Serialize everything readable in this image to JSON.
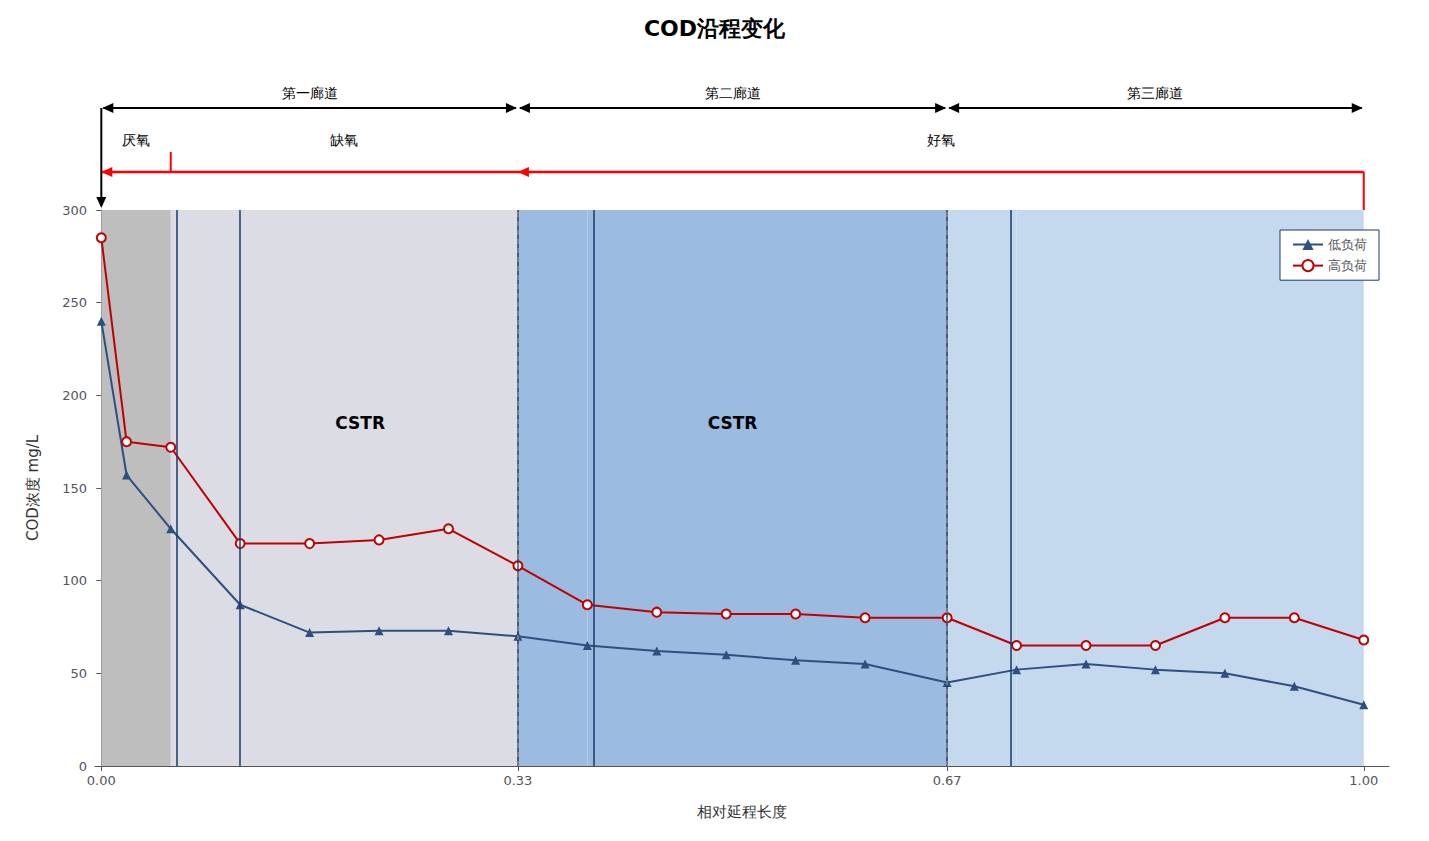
{
  "chart_data": {
    "type": "line",
    "title": "COD沿程变化",
    "xlabel": "相对延程长度",
    "ylabel": "COD浓度 mg/L",
    "xlim": [
      -0.005,
      1.02
    ],
    "xticks": [
      {
        "value": 0.0,
        "label": "0.00"
      },
      {
        "value": 0.33,
        "label": "0.33"
      },
      {
        "value": 0.67,
        "label": "0.67"
      },
      {
        "value": 1.0,
        "label": "1.00"
      }
    ],
    "ylim": [
      0,
      300
    ],
    "yticks": [
      0,
      50,
      100,
      150,
      200,
      250,
      300
    ],
    "grid": false,
    "legend": "upper right",
    "series": [
      {
        "name": "低负荷",
        "color": "#2F4F7F",
        "marker": "triangle",
        "x": [
          0.0,
          0.02,
          0.055,
          0.11,
          0.165,
          0.22,
          0.275,
          0.33,
          0.385,
          0.44,
          0.495,
          0.55,
          0.605,
          0.67,
          0.725,
          0.78,
          0.835,
          0.89,
          0.945,
          1.0
        ],
        "values": [
          240,
          157,
          128,
          87,
          72,
          73,
          73,
          70,
          65,
          62,
          60,
          57,
          55,
          45,
          52,
          55,
          52,
          50,
          43,
          33
        ]
      },
      {
        "name": "高负荷",
        "color": "#C00000",
        "marker": "open_circle",
        "x": [
          0.0,
          0.02,
          0.055,
          0.11,
          0.165,
          0.22,
          0.275,
          0.33,
          0.385,
          0.44,
          0.495,
          0.55,
          0.605,
          0.67,
          0.725,
          0.78,
          0.835,
          0.89,
          0.945,
          1.0
        ],
        "values": [
          285,
          175,
          172,
          120,
          120,
          122,
          128,
          108,
          87,
          83,
          82,
          82,
          80,
          80,
          65,
          65,
          65,
          80,
          80,
          68
        ]
      }
    ],
    "zones": [
      {
        "x0": 0.0,
        "x1": 0.055,
        "color": "#BEBEBE"
      },
      {
        "x0": 0.055,
        "x1": 0.11,
        "color": "#DCDCE4"
      },
      {
        "x0": 0.11,
        "x1": 0.33,
        "color": "#DCDCE4"
      },
      {
        "x0": 0.33,
        "x1": 0.385,
        "color": "#9BBCE0"
      },
      {
        "x0": 0.385,
        "x1": 0.67,
        "color": "#9BBCE0"
      },
      {
        "x0": 0.67,
        "x1": 0.725,
        "color": "#C4D8EE"
      },
      {
        "x0": 0.725,
        "x1": 1.0,
        "color": "#C4D8EE"
      }
    ],
    "solid_dividers": [
      0.055,
      0.11,
      0.385,
      0.725
    ],
    "dashed_dividers": [
      0.33,
      0.67
    ],
    "annotations": [
      {
        "text": "CSTR",
        "x": 0.205,
        "y": 185
      },
      {
        "text": "CSTR",
        "x": 0.5,
        "y": 185
      }
    ],
    "corridors": [
      {
        "text": "第一廊道",
        "x0": 0.0,
        "x1": 0.33
      },
      {
        "text": "第二廊道",
        "x0": 0.33,
        "x1": 0.67
      },
      {
        "text": "第三廊道",
        "x0": 0.67,
        "x1": 1.0
      }
    ],
    "zone_labels": [
      {
        "text": "厌氧",
        "x0": 0.0,
        "x1": 0.055
      },
      {
        "text": "缺氧",
        "x0": 0.055,
        "x1": 0.33
      },
      {
        "text": "好氧",
        "x0": 0.33,
        "x1": 1.0
      }
    ]
  }
}
